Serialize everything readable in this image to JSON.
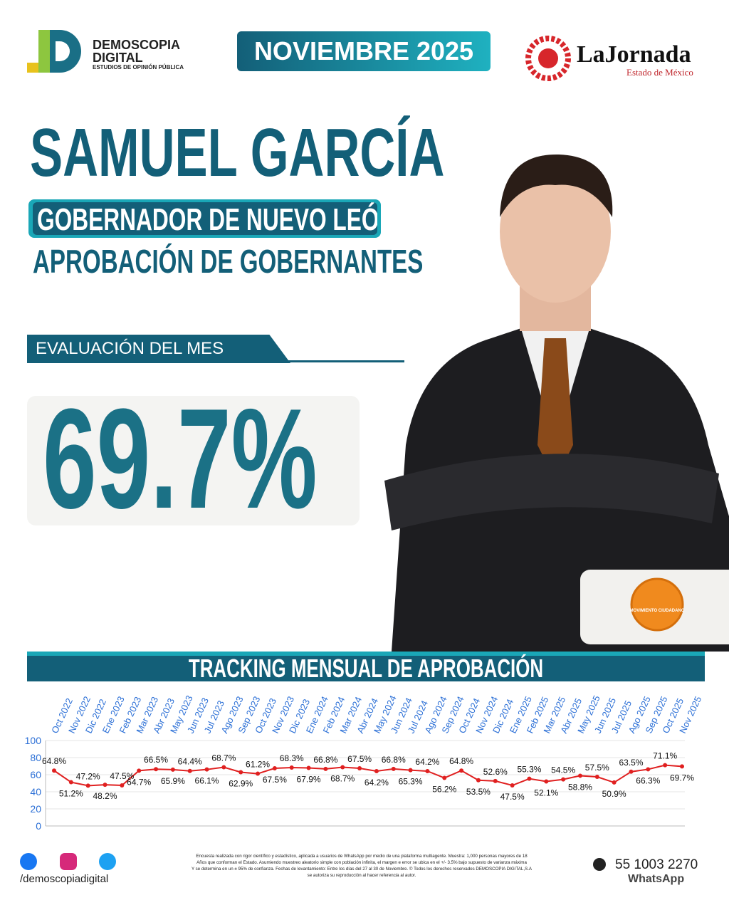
{
  "header": {
    "brand": "DEMOSCOPIA",
    "brand2": "DIGITAL",
    "brand_sub": "ESTUDIOS DE OPINIÓN PÚBLICA",
    "date": "NOVIEMBRE 2025",
    "partner": "LaJornada",
    "partner_sub": "Estado de México"
  },
  "headline": {
    "name": "SAMUEL GARCÍA",
    "role": "GOBERNADOR DE NUEVO LEÓN",
    "topic": "APROBACIÓN DE GOBERNANTES",
    "eval_label": "EVALUACIÓN DEL MES",
    "eval_value": "69.7%",
    "party": "MOVIMIENTO CIUDADANO"
  },
  "chart_data": {
    "type": "line",
    "title": "TRACKING MENSUAL DE APROBACIÓN",
    "categories": [
      "Oct 2022",
      "Nov 2022",
      "Dic 2022",
      "Ene 2023",
      "Feb 2023",
      "Mar 2023",
      "Abr 2023",
      "May 2023",
      "Jun 2023",
      "Jul 2023",
      "Ago 2023",
      "Sep 2023",
      "Oct 2023",
      "Nov 2023",
      "Dic 2023",
      "Ene 2024",
      "Feb 2024",
      "Mar 2024",
      "Abr 2024",
      "May 2024",
      "Jun 2024",
      "Jul 2024",
      "Ago 2024",
      "Sep 2024",
      "Oct 2024",
      "Nov 2024",
      "Dic 2024",
      "Ene 2025",
      "Feb 2025",
      "Mar 2025",
      "Abr 2025",
      "May 2025",
      "Jun 2025",
      "Jul 2025",
      "Ago 2025",
      "Sep 2025",
      "Oct 2025",
      "Nov 2025"
    ],
    "series": [
      {
        "name": "Aprobación",
        "color": "#e02020",
        "values": [
          64.8,
          51.2,
          47.2,
          48.2,
          47.5,
          64.7,
          66.5,
          65.9,
          64.4,
          66.1,
          68.7,
          62.9,
          61.2,
          67.5,
          68.3,
          67.9,
          66.8,
          68.7,
          67.5,
          64.2,
          66.8,
          65.3,
          64.2,
          56.2,
          64.8,
          53.5,
          52.6,
          47.5,
          55.3,
          52.1,
          54.5,
          58.8,
          57.5,
          50.9,
          63.5,
          66.3,
          71.1,
          69.7
        ],
        "value_labels": [
          "64.8%",
          "51.2%",
          "47.2%",
          "48.2%",
          "47.5%",
          "64.7%",
          "66.5%",
          "65.9%",
          "64.4%",
          "66.1%",
          "68.7%",
          "62.9%",
          "61.2%",
          "67.5%",
          "68.3%",
          "67.9%",
          "66.8%",
          "68.7%",
          "67.5%",
          "64.2%",
          "66.8%",
          "65.3%",
          "64.2%",
          "56.2%",
          "64.8%",
          "53.5%",
          "52.6%",
          "47.5%",
          "55.3%",
          "52.1%",
          "54.5%",
          "58.8%",
          "57.5%",
          "50.9%",
          "63.5%",
          "66.3%",
          "71.1%",
          "69.7%"
        ]
      }
    ],
    "ylim": [
      0,
      100
    ],
    "yticks": [
      0,
      20,
      40,
      60,
      80,
      100
    ],
    "grid": true
  },
  "footer": {
    "social": "/demoscopiadigital",
    "disclaimer": [
      "Encuesta realizada con rigor científico y estadístico, aplicada a usuarios de WhatsApp por medio de una plataforma multiagente. Muestra: 1,000 personas mayores de 18",
      "Años que conforman el Estado. Asumiendo muestreo aleatorio simple con población infinita, el margen e error se ubica en el +/- 3.5% bajo supuesto de varianza máxima",
      "Y se determina en un ± 95% de confianza. Fechas de levantamiento: Entre los días del 27 al 30 de Noviembre. © Todos los derechos reservados DEMOSCOPIA DIGITAL,S.A",
      "se autoriza su reproducción al hacer referencia al autor."
    ],
    "phone": "55 1003 2270",
    "phone_label": "WhatsApp"
  }
}
